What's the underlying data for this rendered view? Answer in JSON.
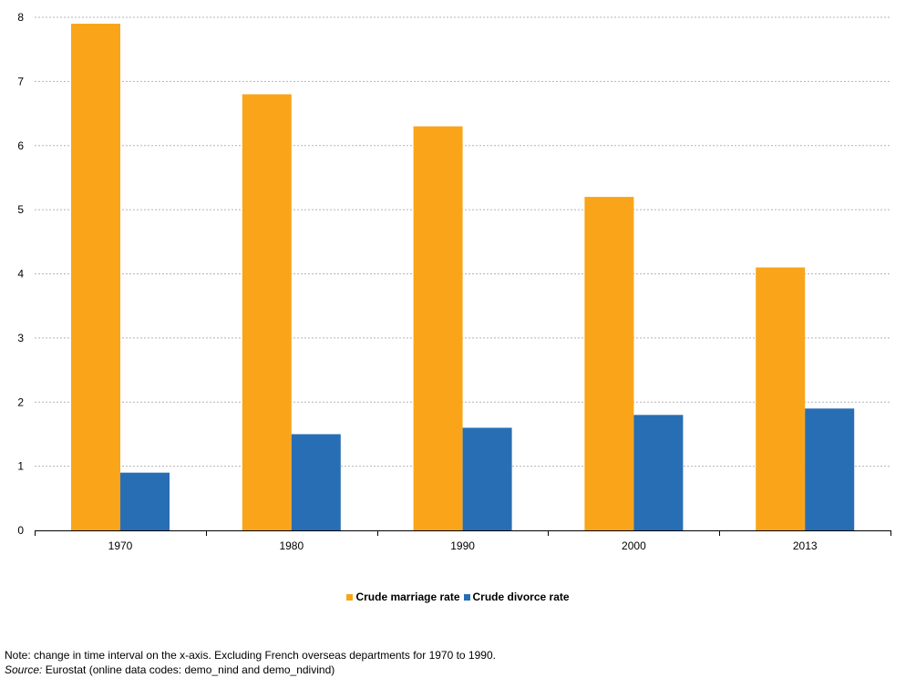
{
  "chart_data": {
    "type": "bar",
    "categories": [
      "1970",
      "1980",
      "1990",
      "2000",
      "2013"
    ],
    "series": [
      {
        "name": "Crude marriage rate",
        "values": [
          7.9,
          6.8,
          6.3,
          5.2,
          4.1
        ],
        "color": "#faa519"
      },
      {
        "name": "Crude divorce rate",
        "values": [
          0.9,
          1.5,
          1.6,
          1.8,
          1.9
        ],
        "color": "#286eb4"
      }
    ],
    "ylim": [
      0,
      8
    ],
    "yticks": [
      "0",
      "1",
      "2",
      "3",
      "4",
      "5",
      "6",
      "7",
      "8"
    ],
    "grid": "horizontal dashed",
    "legend_position": "bottom-center"
  },
  "notes": {
    "note": "Note: change in time interval on the x-axis. Excluding French overseas departments for 1970 to 1990.",
    "source_label": "Source:",
    "source_text": " Eurostat (online data codes: demo_nind and demo_ndivind)"
  }
}
